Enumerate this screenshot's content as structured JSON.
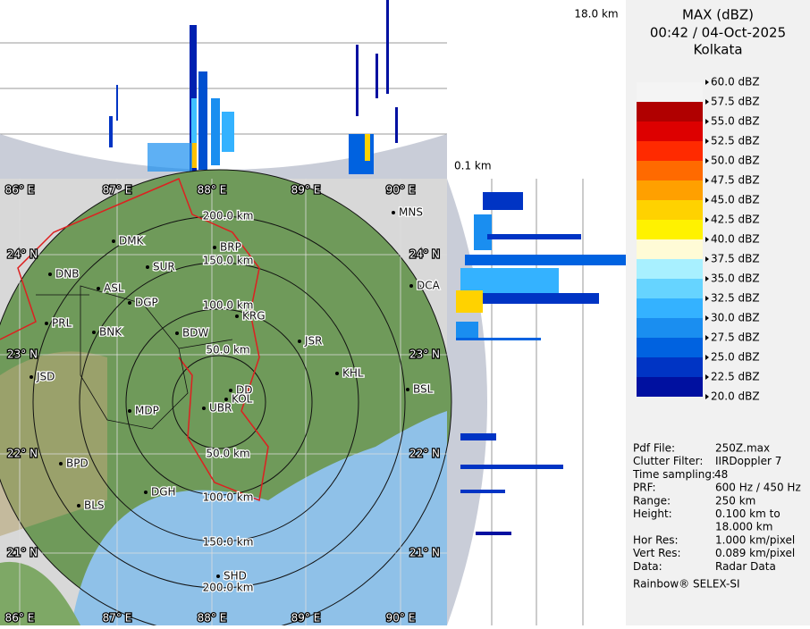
{
  "top_panel": {
    "height_label": "18.0 km"
  },
  "side_panel": {
    "height_label": "0.1 km"
  },
  "header": {
    "title": "MAX (dBZ)",
    "datetime": "00:42 / 04-Oct-2025",
    "station": "Kolkata"
  },
  "legend": {
    "labels": [
      "60.0 dBZ",
      "57.5 dBZ",
      "55.0 dBZ",
      "52.5 dBZ",
      "50.0 dBZ",
      "47.5 dBZ",
      "45.0 dBZ",
      "42.5 dBZ",
      "40.0 dBZ",
      "37.5 dBZ",
      "35.0 dBZ",
      "32.5 dBZ",
      "30.0 dBZ",
      "27.5 dBZ",
      "25.0 dBZ",
      "22.5 dBZ",
      "20.0 dBZ"
    ],
    "band_colors": [
      "#f4f4f4",
      "#b00000",
      "#dd0000",
      "#ff2a00",
      "#ff6a00",
      "#ffa000",
      "#ffd200",
      "#fff200",
      "#fffbd6",
      "#a8f0ff",
      "#66d4ff",
      "#34b2ff",
      "#1a8ef0",
      "#0062e0",
      "#0034c4",
      "#0010a0"
    ]
  },
  "map": {
    "lon_labels": [
      "86° E",
      "87° E",
      "88° E",
      "89° E",
      "90° E"
    ],
    "lat_labels": [
      "24° N",
      "23° N",
      "22° N",
      "21° N"
    ],
    "ring_labels_north": [
      "200.0 km",
      "150.0 km",
      "100.0 km",
      "50.0 km"
    ],
    "ring_labels_south": [
      "50.0 km",
      "100.0 km",
      "150.0 km",
      "200.0 km"
    ],
    "cities": [
      "MNS",
      "DMK",
      "BRP",
      "SUR",
      "DNB",
      "ASL",
      "DGP",
      "DCA",
      "PRL",
      "KRG",
      "BNK",
      "BDW",
      "JSR",
      "KHL",
      "JSD",
      "DD",
      "KOL",
      "BSL",
      "MDP",
      "UBR",
      "BPD",
      "DGH",
      "BLS",
      "SHD"
    ]
  },
  "info": {
    "rows": [
      [
        "Pdf File:",
        "250Z.max"
      ],
      [
        "Clutter Filter:",
        "IIRDoppler 7"
      ],
      [
        "Time sampling:",
        "48"
      ],
      [
        "PRF:",
        "600 Hz / 450 Hz"
      ],
      [
        "Range:",
        "250 km"
      ],
      [
        "Height:",
        "0.100 km to"
      ],
      [
        "",
        "18.000 km"
      ],
      [
        "Hor Res:",
        "1.000 km/pixel"
      ],
      [
        "Vert Res:",
        "0.089 km/pixel"
      ],
      [
        "Data:",
        "Radar Data"
      ]
    ],
    "footer": "Rainbow® SELEX-SI"
  }
}
